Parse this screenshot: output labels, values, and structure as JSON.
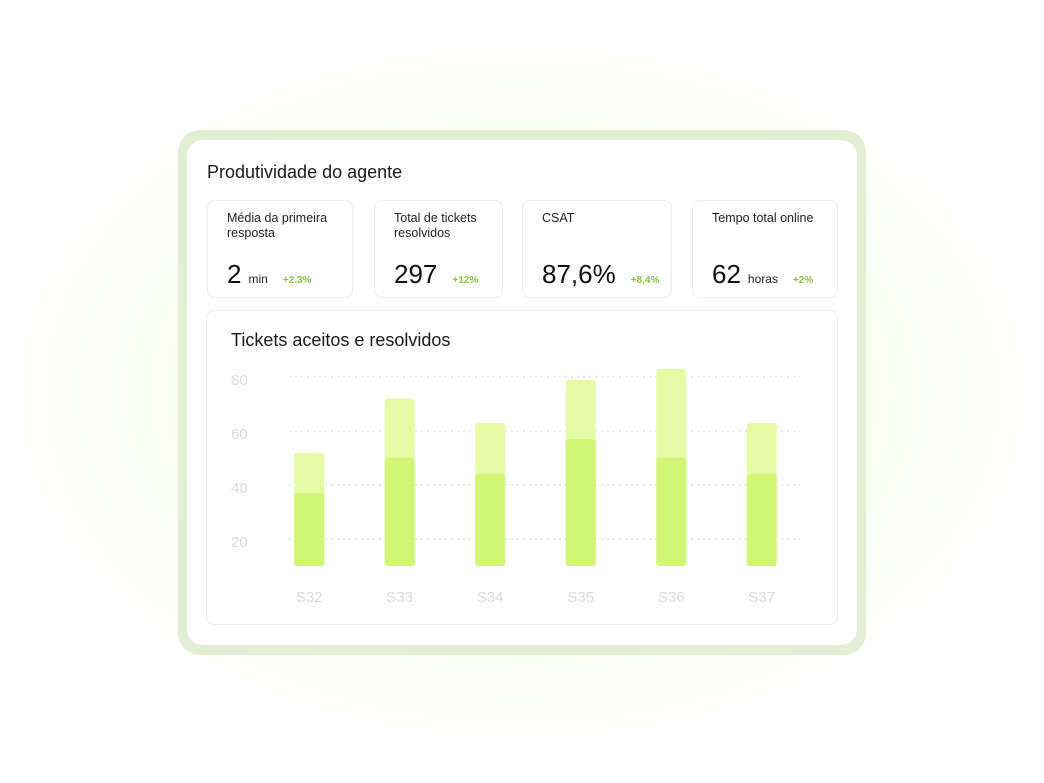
{
  "title": "Produtividade do agente",
  "kpis": [
    {
      "label": "Média da primeira resposta",
      "value": "2",
      "unit": "min",
      "delta": "+2.3%"
    },
    {
      "label": "Total de tickets resolvidos",
      "value": "297",
      "delta": "+12%"
    },
    {
      "label": "CSAT",
      "value": "87,6%",
      "delta": "+8,4%"
    },
    {
      "label": "Tempo total online",
      "value": "62",
      "unit": "horas",
      "delta": "+2%"
    }
  ],
  "chart_data": {
    "type": "bar",
    "title": "Tickets aceitos e resolvidos",
    "categories": [
      "S32",
      "S33",
      "S34",
      "S35",
      "S36",
      "S37"
    ],
    "series": [
      {
        "color": "#e6fba6",
        "values": [
          52,
          72,
          63,
          79,
          83,
          63
        ]
      },
      {
        "color": "#d1f676",
        "values": [
          37,
          50,
          44,
          57,
          50,
          44
        ]
      }
    ],
    "ylim": [
      10,
      85
    ],
    "yticks": [
      20,
      40,
      60,
      80
    ],
    "grid": true
  }
}
